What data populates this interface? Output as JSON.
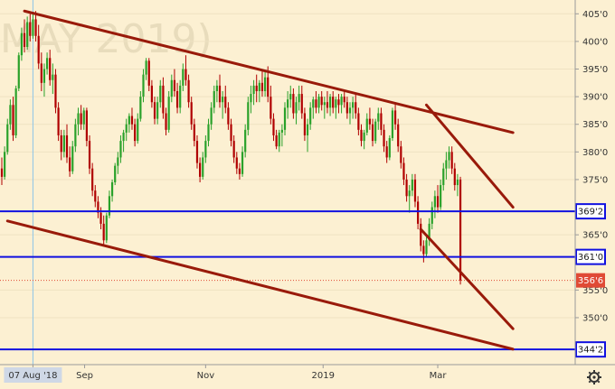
{
  "chart_data": {
    "type": "candlestick",
    "watermark": "MAY 2019)",
    "y_axis": {
      "ylim": [
        341.5,
        407.5
      ],
      "ticks": [
        {
          "value": 405.0,
          "label": "405'0"
        },
        {
          "value": 400.0,
          "label": "400'0"
        },
        {
          "value": 395.0,
          "label": "395'0"
        },
        {
          "value": 390.0,
          "label": "390'0"
        },
        {
          "value": 385.0,
          "label": "385'0"
        },
        {
          "value": 380.0,
          "label": "380'0"
        },
        {
          "value": 375.0,
          "label": "375'0"
        },
        {
          "value": 365.0,
          "label": "365'0"
        },
        {
          "value": 355.0,
          "label": "355'0"
        },
        {
          "value": 350.0,
          "label": "350'0"
        }
      ]
    },
    "x_axis": {
      "labels": [
        {
          "date": "2018-08-07",
          "label": "07 Aug '18",
          "highlighted": true
        },
        {
          "date": "2018-09-01",
          "label": "Sep"
        },
        {
          "date": "2018-11-01",
          "label": "Nov"
        },
        {
          "date": "2019-01-01",
          "label": "2019"
        },
        {
          "date": "2019-03-01",
          "label": "Mar"
        }
      ]
    },
    "horizontal_levels": [
      {
        "value": 369.25,
        "label": "369'2",
        "color": "#1010e0"
      },
      {
        "value": 361.0,
        "label": "361'0",
        "color": "#1010e0"
      },
      {
        "value": 344.25,
        "label": "344'2",
        "color": "#1010e0"
      }
    ],
    "last_price": {
      "value": 356.75,
      "label": "356'6",
      "color": "#e04a35"
    },
    "trend_lines": [
      {
        "from": [
          "2018-08-02",
          405.5
        ],
        "to": [
          "2019-04-08",
          383.5
        ]
      },
      {
        "from": [
          "2018-07-25",
          367.5
        ],
        "to": [
          "2019-04-08",
          344.3
        ]
      },
      {
        "from": [
          "2019-02-25",
          388.5
        ],
        "to": [
          "2019-04-08",
          370.0
        ]
      },
      {
        "from": [
          "2019-02-21",
          366.0
        ],
        "to": [
          "2019-04-08",
          348.0
        ]
      }
    ],
    "cursor_date": "2018-08-07",
    "ohlc": [
      [
        "2018-07-23",
        377.0,
        379.0,
        374.0,
        375.5
      ],
      [
        "2018-07-24",
        375.5,
        381.0,
        375.0,
        380.0
      ],
      [
        "2018-07-25",
        380.0,
        386.0,
        379.5,
        385.0
      ],
      [
        "2018-07-26",
        385.0,
        389.5,
        384.0,
        388.5
      ],
      [
        "2018-07-27",
        388.5,
        390.0,
        382.0,
        383.0
      ],
      [
        "2018-07-30",
        383.0,
        392.0,
        382.5,
        391.5
      ],
      [
        "2018-07-31",
        391.5,
        398.0,
        391.0,
        397.5
      ],
      [
        "2018-08-01",
        397.5,
        402.5,
        396.5,
        401.5
      ],
      [
        "2018-08-02",
        401.5,
        404.0,
        398.0,
        399.0
      ],
      [
        "2018-08-03",
        399.0,
        404.5,
        398.5,
        403.5
      ],
      [
        "2018-08-06",
        403.5,
        405.0,
        400.0,
        401.0
      ],
      [
        "2018-08-07",
        401.0,
        405.0,
        400.5,
        404.0
      ],
      [
        "2018-08-08",
        404.0,
        405.5,
        400.0,
        401.0
      ],
      [
        "2018-08-09",
        401.0,
        403.0,
        395.0,
        396.0
      ],
      [
        "2018-08-10",
        396.0,
        398.0,
        391.0,
        392.5
      ],
      [
        "2018-08-13",
        392.5,
        396.0,
        390.0,
        395.0
      ],
      [
        "2018-08-14",
        395.0,
        398.0,
        394.0,
        397.0
      ],
      [
        "2018-08-15",
        397.0,
        398.5,
        392.0,
        393.0
      ],
      [
        "2018-08-16",
        393.0,
        396.0,
        390.5,
        394.0
      ],
      [
        "2018-08-17",
        394.0,
        395.0,
        387.0,
        388.0
      ],
      [
        "2018-08-20",
        388.0,
        389.0,
        382.0,
        383.0
      ],
      [
        "2018-08-21",
        383.0,
        384.0,
        378.5,
        380.0
      ],
      [
        "2018-08-22",
        380.0,
        384.0,
        379.0,
        383.0
      ],
      [
        "2018-08-23",
        383.0,
        385.0,
        378.0,
        379.0
      ],
      [
        "2018-08-24",
        379.0,
        381.0,
        375.5,
        376.5
      ],
      [
        "2018-08-27",
        376.5,
        382.0,
        376.0,
        381.0
      ],
      [
        "2018-08-28",
        381.0,
        386.0,
        380.0,
        385.0
      ],
      [
        "2018-08-29",
        385.0,
        388.0,
        383.0,
        387.0
      ],
      [
        "2018-08-30",
        387.0,
        388.5,
        384.0,
        385.0
      ],
      [
        "2018-08-31",
        385.0,
        388.0,
        384.0,
        387.5
      ],
      [
        "2018-09-04",
        387.5,
        388.0,
        381.0,
        382.0
      ],
      [
        "2018-09-05",
        382.0,
        383.0,
        376.0,
        377.0
      ],
      [
        "2018-09-06",
        377.0,
        378.0,
        372.0,
        373.0
      ],
      [
        "2018-09-07",
        373.0,
        374.0,
        370.0,
        371.0
      ],
      [
        "2018-09-10",
        371.0,
        372.0,
        368.0,
        369.0
      ],
      [
        "2018-09-11",
        369.0,
        370.0,
        366.0,
        367.0
      ],
      [
        "2018-09-12",
        367.0,
        368.5,
        363.0,
        364.0
      ],
      [
        "2018-09-13",
        364.0,
        369.0,
        363.5,
        368.5
      ],
      [
        "2018-09-14",
        368.5,
        373.0,
        368.0,
        372.0
      ],
      [
        "2018-09-17",
        372.0,
        375.0,
        371.0,
        374.5
      ],
      [
        "2018-09-18",
        374.5,
        378.0,
        374.0,
        377.5
      ],
      [
        "2018-09-19",
        377.5,
        380.0,
        376.0,
        379.0
      ],
      [
        "2018-09-20",
        379.0,
        383.0,
        378.0,
        382.0
      ],
      [
        "2018-09-21",
        382.0,
        384.0,
        380.0,
        383.5
      ],
      [
        "2018-09-24",
        383.5,
        386.0,
        382.0,
        385.0
      ],
      [
        "2018-09-25",
        385.0,
        387.0,
        383.5,
        386.5
      ],
      [
        "2018-09-26",
        386.5,
        388.0,
        384.0,
        385.0
      ],
      [
        "2018-09-27",
        385.0,
        386.0,
        381.0,
        382.0
      ],
      [
        "2018-09-28",
        382.0,
        387.0,
        381.5,
        386.0
      ],
      [
        "2018-10-01",
        386.0,
        391.0,
        385.5,
        390.0
      ],
      [
        "2018-10-02",
        390.0,
        395.0,
        389.0,
        394.0
      ],
      [
        "2018-10-03",
        394.0,
        397.0,
        393.0,
        396.5
      ],
      [
        "2018-10-04",
        396.5,
        397.0,
        391.0,
        392.0
      ],
      [
        "2018-10-05",
        392.0,
        393.0,
        388.0,
        389.0
      ],
      [
        "2018-10-08",
        389.0,
        390.0,
        385.0,
        386.0
      ],
      [
        "2018-10-09",
        386.0,
        390.0,
        385.0,
        389.0
      ],
      [
        "2018-10-10",
        389.0,
        393.0,
        388.0,
        392.0
      ],
      [
        "2018-10-11",
        392.0,
        393.5,
        386.0,
        387.0
      ],
      [
        "2018-10-12",
        387.0,
        388.0,
        383.0,
        384.0
      ],
      [
        "2018-10-15",
        384.0,
        391.0,
        383.5,
        390.0
      ],
      [
        "2018-10-16",
        390.0,
        394.0,
        389.0,
        393.0
      ],
      [
        "2018-10-17",
        393.0,
        395.0,
        390.0,
        391.0
      ],
      [
        "2018-10-18",
        391.0,
        392.5,
        387.0,
        388.0
      ],
      [
        "2018-10-19",
        388.0,
        393.0,
        387.0,
        392.0
      ],
      [
        "2018-10-22",
        392.0,
        396.0,
        391.0,
        395.0
      ],
      [
        "2018-10-23",
        395.0,
        397.5,
        392.0,
        393.0
      ],
      [
        "2018-10-24",
        393.0,
        394.0,
        388.0,
        389.0
      ],
      [
        "2018-10-25",
        389.0,
        390.0,
        384.0,
        385.0
      ],
      [
        "2018-10-26",
        385.0,
        386.0,
        381.0,
        382.0
      ],
      [
        "2018-10-29",
        382.0,
        383.0,
        377.0,
        378.0
      ],
      [
        "2018-10-30",
        378.0,
        379.0,
        374.5,
        375.5
      ],
      [
        "2018-10-31",
        375.5,
        380.0,
        375.0,
        379.0
      ],
      [
        "2018-11-01",
        379.0,
        383.0,
        378.0,
        382.0
      ],
      [
        "2018-11-02",
        382.0,
        386.0,
        381.0,
        385.0
      ],
      [
        "2018-11-05",
        385.0,
        389.0,
        384.0,
        388.0
      ],
      [
        "2018-11-06",
        388.0,
        392.0,
        387.0,
        391.0
      ],
      [
        "2018-11-07",
        391.0,
        393.0,
        389.0,
        392.0
      ],
      [
        "2018-11-08",
        392.0,
        394.0,
        388.0,
        389.0
      ],
      [
        "2018-11-09",
        389.0,
        391.0,
        386.0,
        390.0
      ],
      [
        "2018-11-12",
        390.0,
        392.0,
        387.0,
        388.0
      ],
      [
        "2018-11-13",
        388.0,
        389.0,
        384.0,
        385.0
      ],
      [
        "2018-11-14",
        385.0,
        386.0,
        381.0,
        382.0
      ],
      [
        "2018-11-15",
        382.0,
        383.0,
        378.0,
        379.0
      ],
      [
        "2018-11-16",
        379.0,
        380.0,
        376.0,
        377.0
      ],
      [
        "2018-11-19",
        377.0,
        378.0,
        375.0,
        376.0
      ],
      [
        "2018-11-20",
        376.0,
        381.0,
        375.5,
        380.0
      ],
      [
        "2018-11-21",
        380.0,
        385.0,
        379.0,
        384.0
      ],
      [
        "2018-11-22",
        384.0,
        390.0,
        383.0,
        389.0
      ],
      [
        "2018-11-23",
        389.0,
        392.0,
        387.0,
        390.5
      ],
      [
        "2018-11-26",
        390.5,
        393.0,
        388.5,
        392.0
      ],
      [
        "2018-11-27",
        392.0,
        394.0,
        389.0,
        391.0
      ],
      [
        "2018-11-28",
        391.0,
        393.0,
        389.0,
        392.5
      ],
      [
        "2018-11-29",
        392.5,
        395.0,
        390.0,
        391.0
      ],
      [
        "2018-11-30",
        391.0,
        394.5,
        390.0,
        393.5
      ],
      [
        "2018-12-03",
        393.5,
        395.5,
        389.0,
        390.0
      ],
      [
        "2018-12-04",
        390.0,
        392.0,
        385.0,
        386.0
      ],
      [
        "2018-12-05",
        386.0,
        387.0,
        382.0,
        383.0
      ],
      [
        "2018-12-06",
        383.0,
        384.0,
        380.5,
        381.0
      ],
      [
        "2018-12-07",
        381.0,
        384.0,
        380.0,
        383.5
      ],
      [
        "2018-12-10",
        383.5,
        385.0,
        381.0,
        384.0
      ],
      [
        "2018-12-11",
        384.0,
        389.0,
        383.0,
        388.0
      ],
      [
        "2018-12-12",
        388.0,
        391.0,
        386.0,
        389.5
      ],
      [
        "2018-12-13",
        389.5,
        392.0,
        388.0,
        390.5
      ],
      [
        "2018-12-14",
        390.5,
        391.5,
        386.0,
        387.0
      ],
      [
        "2018-12-17",
        387.0,
        390.0,
        385.0,
        389.0
      ],
      [
        "2018-12-18",
        389.0,
        392.0,
        387.5,
        390.5
      ],
      [
        "2018-12-19",
        390.5,
        392.0,
        386.0,
        387.0
      ],
      [
        "2018-12-20",
        387.0,
        388.0,
        382.0,
        383.0
      ],
      [
        "2018-12-21",
        383.0,
        386.0,
        380.0,
        385.0
      ],
      [
        "2018-12-24",
        385.0,
        389.0,
        384.0,
        388.0
      ],
      [
        "2018-12-26",
        388.0,
        390.0,
        386.0,
        389.5
      ],
      [
        "2018-12-27",
        389.5,
        391.0,
        387.0,
        388.0
      ],
      [
        "2018-12-28",
        388.0,
        390.5,
        387.0,
        390.0
      ],
      [
        "2018-12-31",
        390.0,
        391.0,
        387.5,
        388.5
      ],
      [
        "2019-01-02",
        388.5,
        390.0,
        386.0,
        389.0
      ],
      [
        "2019-01-03",
        389.0,
        391.0,
        387.0,
        388.0
      ],
      [
        "2019-01-04",
        388.0,
        390.5,
        386.5,
        390.0
      ],
      [
        "2019-01-07",
        390.0,
        391.0,
        387.0,
        388.0
      ],
      [
        "2019-01-08",
        388.0,
        390.0,
        386.0,
        389.5
      ],
      [
        "2019-01-09",
        389.5,
        390.5,
        387.0,
        388.5
      ],
      [
        "2019-01-10",
        388.5,
        390.5,
        387.0,
        390.0
      ],
      [
        "2019-01-11",
        390.0,
        391.0,
        388.0,
        389.0
      ],
      [
        "2019-01-14",
        389.0,
        390.0,
        386.0,
        387.0
      ],
      [
        "2019-01-15",
        387.0,
        389.0,
        385.0,
        388.0
      ],
      [
        "2019-01-16",
        388.0,
        390.0,
        386.0,
        389.0
      ],
      [
        "2019-01-17",
        389.0,
        390.5,
        386.0,
        387.0
      ],
      [
        "2019-01-18",
        387.0,
        388.0,
        383.0,
        384.0
      ],
      [
        "2019-01-22",
        384.0,
        385.0,
        381.0,
        382.0
      ],
      [
        "2019-01-23",
        382.0,
        384.0,
        380.5,
        383.5
      ],
      [
        "2019-01-24",
        383.5,
        387.0,
        383.0,
        386.0
      ],
      [
        "2019-01-25",
        386.0,
        388.0,
        384.0,
        385.0
      ],
      [
        "2019-01-28",
        385.0,
        386.0,
        381.0,
        382.0
      ],
      [
        "2019-01-29",
        382.0,
        386.0,
        381.5,
        385.5
      ],
      [
        "2019-01-30",
        385.5,
        388.0,
        384.0,
        387.0
      ],
      [
        "2019-01-31",
        387.0,
        388.0,
        383.0,
        384.0
      ],
      [
        "2019-02-01",
        384.0,
        385.0,
        380.0,
        381.0
      ],
      [
        "2019-02-04",
        381.0,
        382.0,
        378.0,
        379.0
      ],
      [
        "2019-02-05",
        379.0,
        383.0,
        378.5,
        382.5
      ],
      [
        "2019-02-06",
        382.5,
        388.0,
        382.0,
        387.5
      ],
      [
        "2019-02-07",
        387.5,
        389.0,
        384.0,
        385.0
      ],
      [
        "2019-02-08",
        385.0,
        386.0,
        380.0,
        381.0
      ],
      [
        "2019-02-11",
        381.0,
        382.0,
        377.0,
        378.0
      ],
      [
        "2019-02-12",
        378.0,
        379.0,
        374.0,
        375.0
      ],
      [
        "2019-02-13",
        375.0,
        376.0,
        371.0,
        372.0
      ],
      [
        "2019-02-14",
        372.0,
        374.0,
        369.0,
        373.0
      ],
      [
        "2019-02-15",
        373.0,
        376.0,
        372.0,
        375.0
      ],
      [
        "2019-02-19",
        375.0,
        376.0,
        370.0,
        371.0
      ],
      [
        "2019-02-20",
        371.0,
        372.0,
        366.0,
        367.0
      ],
      [
        "2019-02-21",
        367.0,
        368.0,
        362.0,
        363.0
      ],
      [
        "2019-02-22",
        363.0,
        364.0,
        360.0,
        361.5
      ],
      [
        "2019-02-25",
        361.5,
        365.0,
        361.0,
        364.0
      ],
      [
        "2019-02-26",
        364.0,
        368.0,
        363.0,
        367.0
      ],
      [
        "2019-02-27",
        367.0,
        371.0,
        366.0,
        370.0
      ],
      [
        "2019-02-28",
        370.0,
        373.0,
        368.0,
        372.0
      ],
      [
        "2019-03-01",
        372.0,
        374.0,
        369.0,
        370.0
      ],
      [
        "2019-03-04",
        370.0,
        375.0,
        369.5,
        374.0
      ],
      [
        "2019-03-05",
        374.0,
        378.0,
        373.0,
        377.0
      ],
      [
        "2019-03-06",
        377.0,
        380.0,
        375.0,
        378.5
      ],
      [
        "2019-03-07",
        378.5,
        381.0,
        377.0,
        380.0
      ],
      [
        "2019-03-08",
        380.0,
        381.0,
        376.0,
        377.0
      ],
      [
        "2019-03-11",
        377.0,
        378.0,
        373.0,
        374.0
      ],
      [
        "2019-03-12",
        374.0,
        376.0,
        372.0,
        375.0
      ],
      [
        "2019-03-13",
        375.0,
        375.5,
        356.0,
        356.75
      ]
    ]
  },
  "ui": {
    "settings_icon": "gear-icon"
  }
}
